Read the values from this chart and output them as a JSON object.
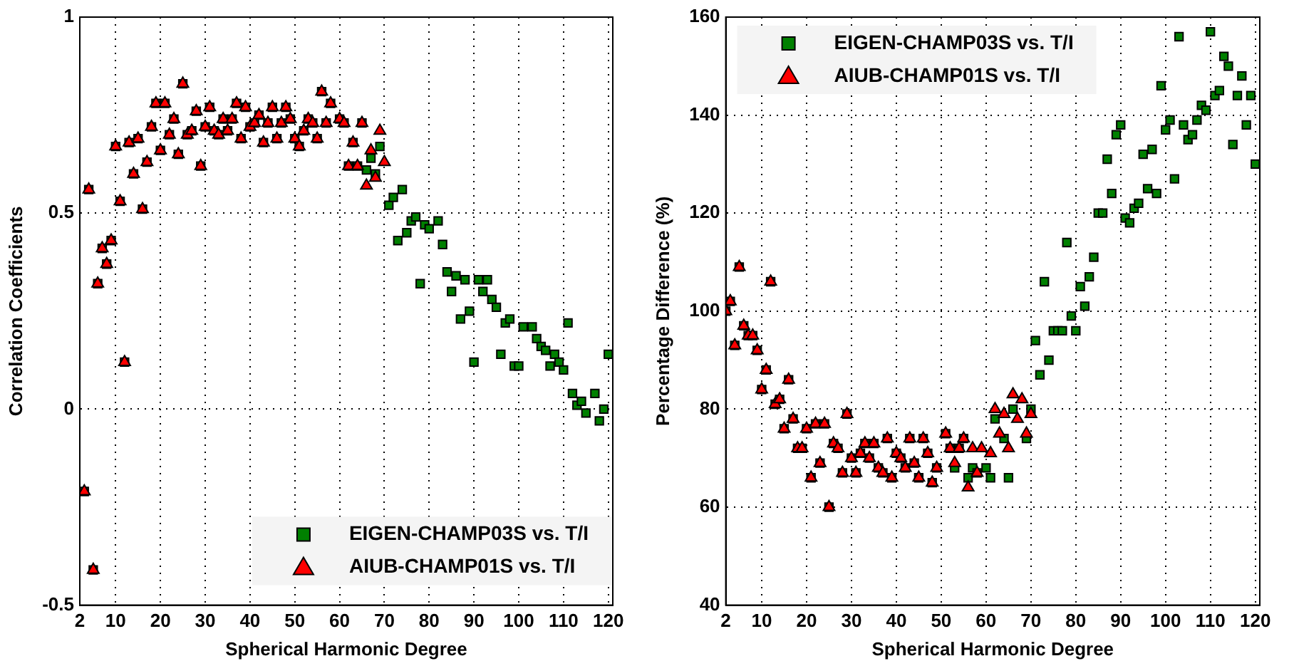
{
  "chart_data": [
    {
      "type": "scatter",
      "xlabel": "Spherical Harmonic Degree",
      "ylabel": "Correlation Coefficients",
      "xlim": [
        2,
        121
      ],
      "ylim": [
        -0.5,
        1
      ],
      "xticks": [
        2,
        10,
        20,
        30,
        40,
        50,
        60,
        70,
        80,
        90,
        100,
        110,
        120
      ],
      "yticks": [
        -0.5,
        0,
        0.5,
        1
      ],
      "grid": true,
      "legend": "bottom right",
      "series": [
        {
          "name": "EIGEN-CHAMP03S vs. T/I",
          "color": "#008000",
          "marker": "square",
          "x": [
            3,
            4,
            5,
            6,
            7,
            8,
            9,
            10,
            11,
            12,
            13,
            14,
            15,
            16,
            17,
            18,
            19,
            20,
            21,
            22,
            23,
            24,
            25,
            26,
            27,
            28,
            29,
            30,
            31,
            32,
            33,
            34,
            35,
            36,
            37,
            38,
            39,
            40,
            41,
            42,
            43,
            44,
            45,
            46,
            47,
            48,
            49,
            50,
            51,
            52,
            53,
            54,
            55,
            56,
            57,
            58,
            60,
            61,
            62,
            63,
            64,
            65,
            66,
            67,
            68,
            69,
            71,
            72,
            73,
            74,
            75,
            76,
            77,
            78,
            79,
            80,
            82,
            83,
            84,
            85,
            86,
            87,
            88,
            89,
            90,
            91,
            92,
            93,
            94,
            95,
            96,
            97,
            98,
            99,
            100,
            101,
            103,
            104,
            105,
            106,
            107,
            108,
            109,
            110,
            111,
            112,
            113,
            114,
            115,
            117,
            118,
            119,
            120
          ],
          "values": [
            -0.21,
            0.56,
            -0.41,
            0.32,
            0.41,
            0.37,
            0.43,
            0.67,
            0.53,
            0.12,
            0.68,
            0.6,
            0.69,
            0.51,
            0.63,
            0.72,
            0.78,
            0.66,
            0.78,
            0.7,
            0.74,
            0.65,
            0.83,
            0.7,
            0.71,
            0.76,
            0.62,
            0.72,
            0.77,
            0.71,
            0.7,
            0.74,
            0.71,
            0.74,
            0.78,
            0.69,
            0.77,
            0.72,
            0.73,
            0.75,
            0.68,
            0.73,
            0.77,
            0.69,
            0.73,
            0.77,
            0.74,
            0.69,
            0.67,
            0.71,
            0.74,
            0.73,
            0.69,
            0.81,
            0.73,
            0.78,
            0.74,
            0.73,
            0.62,
            0.68,
            0.62,
            0.73,
            0.61,
            0.64,
            0.6,
            0.67,
            0.52,
            0.54,
            0.43,
            0.56,
            0.45,
            0.48,
            0.49,
            0.32,
            0.47,
            0.46,
            0.48,
            0.42,
            0.35,
            0.3,
            0.34,
            0.23,
            0.33,
            0.25,
            0.12,
            0.33,
            0.3,
            0.33,
            0.28,
            0.26,
            0.14,
            0.22,
            0.23,
            0.11,
            0.11,
            0.21,
            0.21,
            0.18,
            0.16,
            0.15,
            0.11,
            0.14,
            0.12,
            0.1,
            0.22,
            0.04,
            0.01,
            0.02,
            -0.01,
            0.04,
            -0.03,
            0.0,
            0.14
          ]
        },
        {
          "name": "AIUB-CHAMP01S vs. T/I",
          "color": "#ff0000",
          "marker": "triangle",
          "x": [
            3,
            4,
            5,
            6,
            7,
            8,
            9,
            10,
            11,
            12,
            13,
            14,
            15,
            16,
            17,
            18,
            19,
            20,
            21,
            22,
            23,
            24,
            25,
            26,
            27,
            28,
            29,
            30,
            31,
            32,
            33,
            34,
            35,
            36,
            37,
            38,
            39,
            40,
            41,
            42,
            43,
            44,
            45,
            46,
            47,
            48,
            49,
            50,
            51,
            52,
            53,
            54,
            55,
            56,
            57,
            58,
            60,
            61,
            62,
            63,
            64,
            65,
            66,
            67,
            68,
            69,
            70
          ],
          "values": [
            -0.21,
            0.56,
            -0.41,
            0.32,
            0.41,
            0.37,
            0.43,
            0.67,
            0.53,
            0.12,
            0.68,
            0.6,
            0.69,
            0.51,
            0.63,
            0.72,
            0.78,
            0.66,
            0.78,
            0.7,
            0.74,
            0.65,
            0.83,
            0.7,
            0.71,
            0.76,
            0.62,
            0.72,
            0.77,
            0.71,
            0.7,
            0.74,
            0.71,
            0.74,
            0.78,
            0.69,
            0.77,
            0.72,
            0.73,
            0.75,
            0.68,
            0.73,
            0.77,
            0.69,
            0.73,
            0.77,
            0.74,
            0.69,
            0.67,
            0.71,
            0.74,
            0.73,
            0.69,
            0.81,
            0.73,
            0.78,
            0.74,
            0.73,
            0.62,
            0.68,
            0.62,
            0.73,
            0.57,
            0.66,
            0.59,
            0.71,
            0.63
          ]
        }
      ]
    },
    {
      "type": "scatter",
      "xlabel": "Spherical Harmonic Degree",
      "ylabel": "Percentage Difference (%)",
      "xlim": [
        2,
        121
      ],
      "ylim": [
        40,
        160
      ],
      "xticks": [
        2,
        10,
        20,
        30,
        40,
        50,
        60,
        70,
        80,
        90,
        100,
        110,
        120
      ],
      "yticks": [
        40,
        60,
        80,
        100,
        120,
        140,
        160
      ],
      "grid": true,
      "legend": "top left",
      "series": [
        {
          "name": "EIGEN-CHAMP03S vs. T/I",
          "color": "#008000",
          "marker": "square",
          "x": [
            2,
            3,
            4,
            5,
            6,
            7,
            8,
            9,
            10,
            11,
            12,
            13,
            14,
            15,
            16,
            17,
            18,
            19,
            20,
            21,
            22,
            23,
            24,
            25,
            26,
            27,
            28,
            29,
            30,
            31,
            32,
            33,
            34,
            35,
            36,
            37,
            38,
            39,
            40,
            41,
            42,
            43,
            44,
            45,
            46,
            47,
            48,
            49,
            51,
            52,
            53,
            54,
            55,
            56,
            57,
            58,
            60,
            61,
            62,
            64,
            65,
            66,
            69,
            70,
            71,
            72,
            73,
            74,
            75,
            76,
            77,
            78,
            79,
            80,
            81,
            82,
            83,
            84,
            85,
            86,
            87,
            88,
            89,
            90,
            91,
            92,
            93,
            94,
            95,
            96,
            97,
            98,
            99,
            100,
            101,
            102,
            103,
            104,
            105,
            106,
            107,
            108,
            109,
            110,
            111,
            112,
            113,
            114,
            115,
            116,
            117,
            118,
            119,
            120
          ],
          "values": [
            100,
            102,
            93,
            109,
            97,
            95,
            95,
            92,
            84,
            88,
            106,
            81,
            82,
            76,
            86,
            78,
            72,
            72,
            76,
            66,
            77,
            69,
            77,
            60,
            73,
            72,
            67,
            79,
            70,
            67,
            71,
            73,
            70,
            73,
            68,
            67,
            74,
            66,
            71,
            70,
            68,
            74,
            69,
            66,
            74,
            71,
            65,
            68,
            75,
            72,
            68,
            72,
            74,
            66,
            68,
            67,
            68,
            66,
            78,
            74,
            66,
            80,
            74,
            80,
            94,
            87,
            106,
            90,
            96,
            96,
            96,
            114,
            99,
            96,
            105,
            101,
            107,
            111,
            120,
            120,
            131,
            124,
            136,
            138,
            119,
            118,
            121,
            122,
            132,
            125,
            133,
            124,
            146,
            137,
            139,
            127,
            156,
            138,
            135,
            136,
            139,
            142,
            141,
            157,
            144,
            145,
            152,
            150,
            134,
            144,
            148,
            138,
            144,
            130
          ]
        },
        {
          "name": "AIUB-CHAMP01S vs. T/I",
          "color": "#ff0000",
          "marker": "triangle",
          "x": [
            2,
            3,
            4,
            5,
            6,
            7,
            8,
            9,
            10,
            11,
            12,
            13,
            14,
            15,
            16,
            17,
            18,
            19,
            20,
            21,
            22,
            23,
            24,
            25,
            26,
            27,
            28,
            29,
            30,
            31,
            32,
            33,
            34,
            35,
            36,
            37,
            38,
            39,
            40,
            41,
            42,
            43,
            44,
            45,
            46,
            47,
            48,
            49,
            51,
            52,
            53,
            54,
            55,
            56,
            57,
            58,
            59,
            61,
            62,
            63,
            64,
            65,
            66,
            67,
            68,
            69,
            70
          ],
          "values": [
            100,
            102,
            93,
            109,
            97,
            95,
            95,
            92,
            84,
            88,
            106,
            81,
            82,
            76,
            86,
            78,
            72,
            72,
            76,
            66,
            77,
            69,
            77,
            60,
            73,
            72,
            67,
            79,
            70,
            67,
            71,
            73,
            70,
            73,
            68,
            67,
            74,
            66,
            71,
            70,
            68,
            74,
            69,
            66,
            74,
            71,
            65,
            68,
            75,
            72,
            69,
            72,
            74,
            64,
            72,
            67,
            72,
            71,
            80,
            75,
            79,
            72,
            83,
            78,
            82,
            75,
            79
          ]
        }
      ]
    }
  ]
}
